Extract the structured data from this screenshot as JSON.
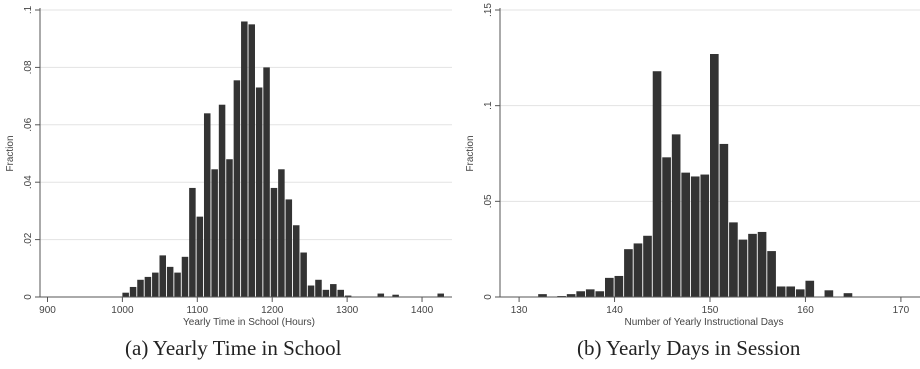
{
  "chart_data": [
    {
      "type": "bar",
      "caption": "(a) Yearly Time in School",
      "xlabel": "Yearly Time in School (Hours)",
      "ylabel": "Fraction",
      "xlim": [
        890,
        1440
      ],
      "ylim": [
        0,
        0.1
      ],
      "xticks": [
        900,
        1000,
        1100,
        1200,
        1300,
        1400
      ],
      "yticks": [
        0,
        0.02,
        0.04,
        0.06,
        0.08,
        0.1
      ],
      "ytick_labels": [
        "0",
        ".02",
        ".04",
        ".06",
        ".08",
        ".1"
      ],
      "grid": true,
      "bin_width": 9.9,
      "bins": [
        [
          1000,
          0.0015
        ],
        [
          1009.9,
          0.0035
        ],
        [
          1019.8,
          0.006
        ],
        [
          1029.7,
          0.007
        ],
        [
          1039.6,
          0.0085
        ],
        [
          1049.5,
          0.0145
        ],
        [
          1059.4,
          0.0105
        ],
        [
          1069.3,
          0.0085
        ],
        [
          1079.2,
          0.014
        ],
        [
          1089.1,
          0.038
        ],
        [
          1099,
          0.028
        ],
        [
          1108.9,
          0.064
        ],
        [
          1118.8,
          0.0445
        ],
        [
          1128.7,
          0.067
        ],
        [
          1138.6,
          0.048
        ],
        [
          1148.5,
          0.0755
        ],
        [
          1158.4,
          0.096
        ],
        [
          1168.3,
          0.095
        ],
        [
          1178.2,
          0.073
        ],
        [
          1188.1,
          0.08
        ],
        [
          1198,
          0.038
        ],
        [
          1207.9,
          0.0445
        ],
        [
          1217.8,
          0.034
        ],
        [
          1227.7,
          0.025
        ],
        [
          1237.6,
          0.0155
        ],
        [
          1247.5,
          0.004
        ],
        [
          1257.4,
          0.006
        ],
        [
          1267.3,
          0.0025
        ],
        [
          1277.2,
          0.0045
        ],
        [
          1287.1,
          0.0025
        ],
        [
          1297,
          0.0005
        ],
        [
          1340.6,
          0.0012
        ],
        [
          1360.4,
          0.0008
        ],
        [
          1420.6,
          0.0012
        ]
      ]
    },
    {
      "type": "bar",
      "caption": "(b) Yearly Days in Session",
      "xlabel": "Number of Yearly Instructional Days",
      "ylabel": "Fraction",
      "xlim": [
        128,
        172
      ],
      "ylim": [
        0,
        0.15
      ],
      "xticks": [
        130,
        140,
        150,
        160,
        170
      ],
      "yticks": [
        0,
        0.05,
        0.1,
        0.15
      ],
      "ytick_labels": [
        "0",
        ".05",
        ".1",
        ".15"
      ],
      "grid": true,
      "bin_width": 1,
      "bins": [
        [
          132,
          0.0015
        ],
        [
          134,
          0.0005
        ],
        [
          135,
          0.0015
        ],
        [
          136,
          0.003
        ],
        [
          137,
          0.004
        ],
        [
          138,
          0.003
        ],
        [
          139,
          0.01
        ],
        [
          140,
          0.011
        ],
        [
          141,
          0.025
        ],
        [
          142,
          0.028
        ],
        [
          143,
          0.032
        ],
        [
          144,
          0.118
        ],
        [
          145,
          0.073
        ],
        [
          146,
          0.085
        ],
        [
          147,
          0.065
        ],
        [
          148,
          0.063
        ],
        [
          149,
          0.064
        ],
        [
          150,
          0.127
        ],
        [
          151,
          0.08
        ],
        [
          152,
          0.039
        ],
        [
          153,
          0.03
        ],
        [
          154,
          0.033
        ],
        [
          155,
          0.034
        ],
        [
          156,
          0.024
        ],
        [
          157,
          0.0055
        ],
        [
          158,
          0.0055
        ],
        [
          159,
          0.004
        ],
        [
          160,
          0.0085
        ],
        [
          162,
          0.0035
        ],
        [
          164,
          0.002
        ]
      ]
    }
  ]
}
